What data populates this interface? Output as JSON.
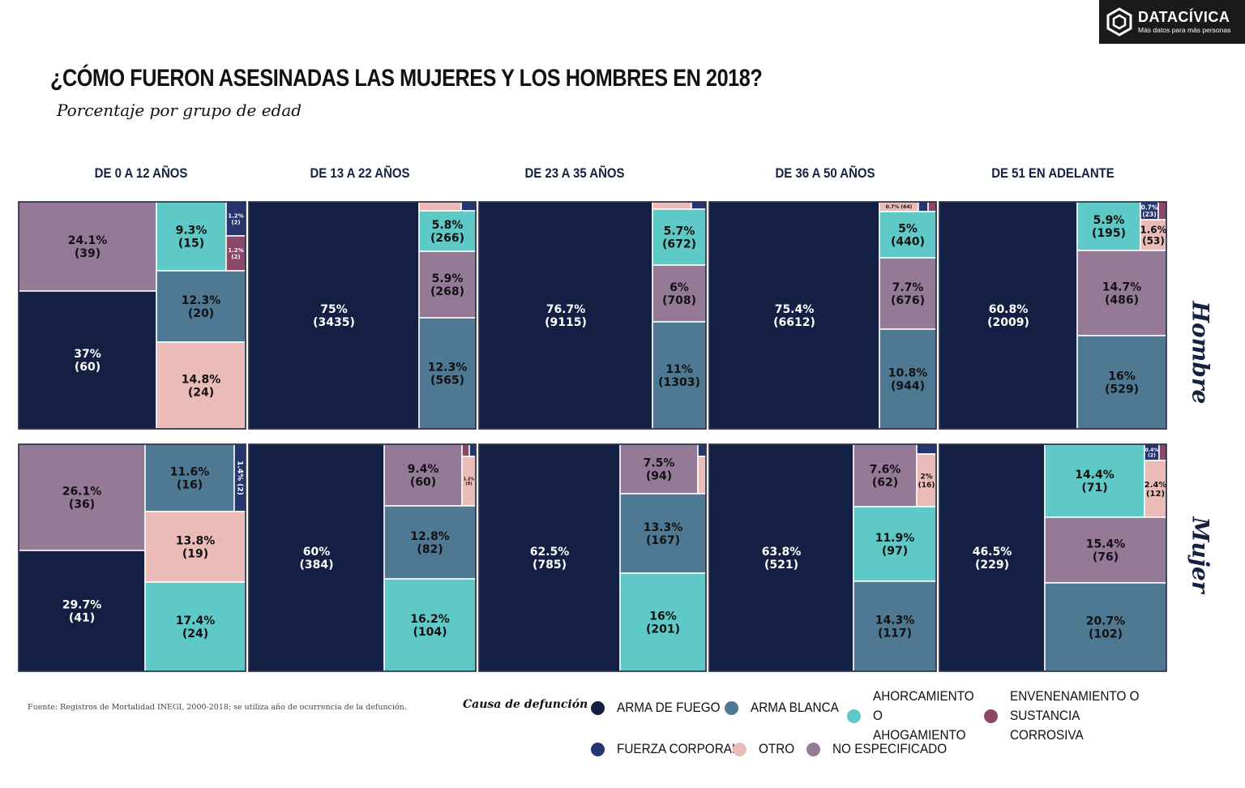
{
  "title": "¿CÓMO FUERON ASESINADAS LAS MUJERES Y LOS HOMBRES EN 2018?",
  "subtitle": "Porcentaje por grupo de edad",
  "logo": {
    "name": "DATACÍVICA",
    "tagline": "Más datos para más personas"
  },
  "source": "Fuente: Registros de Mortalidad INEGI, 2000-2018; se utiliza año de ocurrencia de la defunción.",
  "legend": {
    "title": "Causa de defunción",
    "items": [
      {
        "label": "ARMA DE FUEGO",
        "color": "#131f43"
      },
      {
        "label": "ARMA BLANCA",
        "color": "#4f7892"
      },
      {
        "label": "AHORCAMIENTO O AHOGAMIENTO",
        "color": "#5ec9c6"
      },
      {
        "label": "ENVENENAMIENTO O SUSTANCIA CORROSIVA",
        "color": "#8c4767"
      },
      {
        "label": "FUERZA CORPORAL",
        "color": "#25356e"
      },
      {
        "label": "OTRO",
        "color": "#ebbcb7"
      },
      {
        "label": "NO ESPECIFICADO",
        "color": "#957a97"
      }
    ]
  },
  "chart_data": {
    "type": "treemap",
    "columns": [
      "DE 0 A 12 AÑOS",
      "DE 13 A 22 AÑOS",
      "DE 23 A 35 AÑOS",
      "DE 36 A 50 AÑOS",
      "DE 51 EN ADELANTE"
    ],
    "rows": [
      "Hombre",
      "Mujer"
    ],
    "categories": [
      "ARMA DE FUEGO",
      "ARMA BLANCA",
      "AHORCAMIENTO O AHOGAMIENTO",
      "ENVENENAMIENTO O SUSTANCIA CORROSIVA",
      "FUERZA CORPORAL",
      "OTRO",
      "NO ESPECIFICADO"
    ],
    "panels": [
      {
        "row": "Hombre",
        "column": "DE 0 A 12 AÑOS",
        "cells": [
          {
            "cause": "NO ESPECIFICADO",
            "pct": 24.1,
            "count": 39,
            "label": "24.1%\n(39)"
          },
          {
            "cause": "ARMA DE FUEGO",
            "pct": 37,
            "count": 60,
            "label": "37%\n(60)"
          },
          {
            "cause": "AHORCAMIENTO O AHOGAMIENTO",
            "pct": 9.3,
            "count": 15,
            "label": "9.3%\n(15)"
          },
          {
            "cause": "FUERZA CORPORAL",
            "pct": 1.2,
            "count": 2,
            "label": "1.2%\n(2)"
          },
          {
            "cause": "ENVENENAMIENTO O SUSTANCIA CORROSIVA",
            "pct": 1.2,
            "count": 2,
            "label": "1.2%\n(2)"
          },
          {
            "cause": "ARMA BLANCA",
            "pct": 12.3,
            "count": 20,
            "label": "12.3%\n(20)"
          },
          {
            "cause": "OTRO",
            "pct": 14.8,
            "count": 24,
            "label": "14.8%\n(24)"
          }
        ]
      },
      {
        "row": "Hombre",
        "column": "DE 13 A 22 AÑOS",
        "cells": [
          {
            "cause": "ARMA DE FUEGO",
            "pct": 75,
            "count": 3435,
            "label": "75%\n(3435)"
          },
          {
            "cause": "OTRO",
            "pct": null,
            "count": null,
            "label": ""
          },
          {
            "cause": "FUERZA CORPORAL",
            "pct": null,
            "count": null,
            "label": ""
          },
          {
            "cause": "AHORCAMIENTO O AHOGAMIENTO",
            "pct": 5.8,
            "count": 266,
            "label": "5.8%\n(266)"
          },
          {
            "cause": "NO ESPECIFICADO",
            "pct": 5.9,
            "count": 268,
            "label": "5.9%\n(268)"
          },
          {
            "cause": "ARMA BLANCA",
            "pct": 12.3,
            "count": 565,
            "label": "12.3%\n(565)"
          }
        ]
      },
      {
        "row": "Hombre",
        "column": "DE 23 A 35 AÑOS",
        "cells": [
          {
            "cause": "ARMA DE FUEGO",
            "pct": 76.7,
            "count": 9115,
            "label": "76.7%\n(9115)"
          },
          {
            "cause": "OTRO",
            "pct": null,
            "count": null,
            "label": ""
          },
          {
            "cause": "FUERZA CORPORAL",
            "pct": null,
            "count": null,
            "label": ""
          },
          {
            "cause": "AHORCAMIENTO O AHOGAMIENTO",
            "pct": 5.7,
            "count": 672,
            "label": "5.7%\n(672)"
          },
          {
            "cause": "NO ESPECIFICADO",
            "pct": 6,
            "count": 708,
            "label": "6%\n(708)"
          },
          {
            "cause": "ARMA BLANCA",
            "pct": 11,
            "count": 1303,
            "label": "11%\n(1303)"
          }
        ]
      },
      {
        "row": "Hombre",
        "column": "DE 36 A 50 AÑOS",
        "cells": [
          {
            "cause": "ARMA DE FUEGO",
            "pct": 75.4,
            "count": 6612,
            "label": "75.4%\n(6612)"
          },
          {
            "cause": "OTRO",
            "pct": 0.7,
            "count": 64,
            "label": "0.7% (64)"
          },
          {
            "cause": "FUERZA CORPORAL",
            "pct": null,
            "count": null,
            "label": ""
          },
          {
            "cause": "ENVENENAMIENTO O SUSTANCIA CORROSIVA",
            "pct": null,
            "count": null,
            "label": ""
          },
          {
            "cause": "AHORCAMIENTO O AHOGAMIENTO",
            "pct": 5,
            "count": 440,
            "label": "5%\n(440)"
          },
          {
            "cause": "NO ESPECIFICADO",
            "pct": 7.7,
            "count": 676,
            "label": "7.7%\n(676)"
          },
          {
            "cause": "ARMA BLANCA",
            "pct": 10.8,
            "count": 944,
            "label": "10.8%\n(944)"
          }
        ]
      },
      {
        "row": "Hombre",
        "column": "DE 51 EN ADELANTE",
        "cells": [
          {
            "cause": "ARMA DE FUEGO",
            "pct": 60.8,
            "count": 2009,
            "label": "60.8%\n(2009)"
          },
          {
            "cause": "AHORCAMIENTO O AHOGAMIENTO",
            "pct": 5.9,
            "count": 195,
            "label": "5.9%\n(195)"
          },
          {
            "cause": "FUERZA CORPORAL",
            "pct": 0.7,
            "count": 23,
            "label": "0.7%\n(23)"
          },
          {
            "cause": "ENVENENAMIENTO O SUSTANCIA CORROSIVA",
            "pct": null,
            "count": null,
            "label": ""
          },
          {
            "cause": "OTRO",
            "pct": 1.6,
            "count": 53,
            "label": "1.6%\n(53)"
          },
          {
            "cause": "NO ESPECIFICADO",
            "pct": 14.7,
            "count": 486,
            "label": "14.7%\n(486)"
          },
          {
            "cause": "ARMA BLANCA",
            "pct": 16,
            "count": 529,
            "label": "16%\n(529)"
          }
        ]
      },
      {
        "row": "Mujer",
        "column": "DE 0 A 12 AÑOS",
        "cells": [
          {
            "cause": "NO ESPECIFICADO",
            "pct": 26.1,
            "count": 36,
            "label": "26.1%\n(36)"
          },
          {
            "cause": "ARMA DE FUEGO",
            "pct": 29.7,
            "count": 41,
            "label": "29.7%\n(41)"
          },
          {
            "cause": "ARMA BLANCA",
            "pct": 11.6,
            "count": 16,
            "label": "11.6%\n(16)"
          },
          {
            "cause": "FUERZA CORPORAL",
            "pct": 1.4,
            "count": 2,
            "label": "1.4% (2)"
          },
          {
            "cause": "OTRO",
            "pct": 13.8,
            "count": 19,
            "label": "13.8%\n(19)"
          },
          {
            "cause": "AHORCAMIENTO O AHOGAMIENTO",
            "pct": 17.4,
            "count": 24,
            "label": "17.4%\n(24)"
          }
        ]
      },
      {
        "row": "Mujer",
        "column": "DE 13 A 22 AÑOS",
        "cells": [
          {
            "cause": "ARMA DE FUEGO",
            "pct": 60,
            "count": 384,
            "label": "60%\n(384)"
          },
          {
            "cause": "NO ESPECIFICADO",
            "pct": 9.4,
            "count": 60,
            "label": "9.4%\n(60)"
          },
          {
            "cause": "ENVENENAMIENTO O SUSTANCIA CORROSIVA",
            "pct": null,
            "count": null,
            "label": ""
          },
          {
            "cause": "FUERZA CORPORAL",
            "pct": null,
            "count": null,
            "label": ""
          },
          {
            "cause": "OTRO",
            "pct": 1.2,
            "count": 8,
            "label": "1.2%\n(8)"
          },
          {
            "cause": "ARMA BLANCA",
            "pct": 12.8,
            "count": 82,
            "label": "12.8%\n(82)"
          },
          {
            "cause": "AHORCAMIENTO O AHOGAMIENTO",
            "pct": 16.2,
            "count": 104,
            "label": "16.2%\n(104)"
          }
        ]
      },
      {
        "row": "Mujer",
        "column": "DE 23 A 35 AÑOS",
        "cells": [
          {
            "cause": "ARMA DE FUEGO",
            "pct": 62.5,
            "count": 785,
            "label": "62.5%\n(785)"
          },
          {
            "cause": "NO ESPECIFICADO",
            "pct": 7.5,
            "count": 94,
            "label": "7.5%\n(94)"
          },
          {
            "cause": "FUERZA CORPORAL",
            "pct": null,
            "count": null,
            "label": ""
          },
          {
            "cause": "OTRO",
            "pct": null,
            "count": null,
            "label": ""
          },
          {
            "cause": "ARMA BLANCA",
            "pct": 13.3,
            "count": 167,
            "label": "13.3%\n(167)"
          },
          {
            "cause": "AHORCAMIENTO O AHOGAMIENTO",
            "pct": 16,
            "count": 201,
            "label": "16%\n(201)"
          }
        ]
      },
      {
        "row": "Mujer",
        "column": "DE 36 A 50 AÑOS",
        "cells": [
          {
            "cause": "ARMA DE FUEGO",
            "pct": 63.8,
            "count": 521,
            "label": "63.8%\n(521)"
          },
          {
            "cause": "NO ESPECIFICADO",
            "pct": 7.6,
            "count": 62,
            "label": "7.6%\n(62)"
          },
          {
            "cause": "FUERZA CORPORAL",
            "pct": null,
            "count": null,
            "label": ""
          },
          {
            "cause": "OTRO",
            "pct": 2,
            "count": 16,
            "label": "2%\n(16)"
          },
          {
            "cause": "AHORCAMIENTO O AHOGAMIENTO",
            "pct": 11.9,
            "count": 97,
            "label": "11.9%\n(97)"
          },
          {
            "cause": "ARMA BLANCA",
            "pct": 14.3,
            "count": 117,
            "label": "14.3%\n(117)"
          }
        ]
      },
      {
        "row": "Mujer",
        "column": "DE 51 EN ADELANTE",
        "cells": [
          {
            "cause": "ARMA DE FUEGO",
            "pct": 46.5,
            "count": 229,
            "label": "46.5%\n(229)"
          },
          {
            "cause": "AHORCAMIENTO O AHOGAMIENTO",
            "pct": 14.4,
            "count": 71,
            "label": "14.4%\n(71)"
          },
          {
            "cause": "FUERZA CORPORAL",
            "pct": 0.4,
            "count": 2,
            "label": "0.4%\n(2)"
          },
          {
            "cause": "ENVENENAMIENTO O SUSTANCIA CORROSIVA",
            "pct": null,
            "count": null,
            "label": ""
          },
          {
            "cause": "OTRO",
            "pct": 2.4,
            "count": 12,
            "label": "2.4%\n(12)"
          },
          {
            "cause": "NO ESPECIFICADO",
            "pct": 15.4,
            "count": 76,
            "label": "15.4%\n(76)"
          },
          {
            "cause": "ARMA BLANCA",
            "pct": 20.7,
            "count": 102,
            "label": "20.7%\n(102)"
          }
        ]
      }
    ]
  }
}
